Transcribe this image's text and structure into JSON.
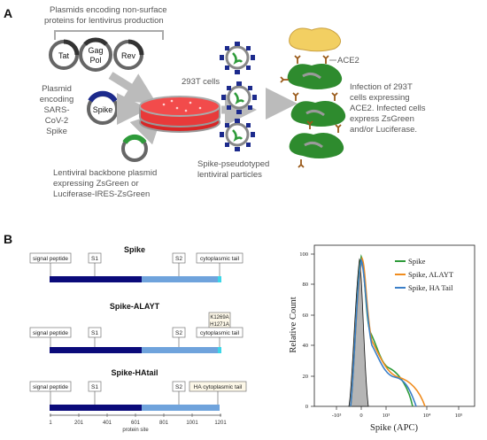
{
  "panelA": {
    "label": "A",
    "plasmid_header_line1": "Plasmids encoding non-surface",
    "plasmid_header_line2": "proteins for lentivirus production",
    "plasmids": [
      "Tat",
      "Gag",
      "Pol",
      "Rev"
    ],
    "spike_plasmid_label": [
      "Plasmid",
      "encoding",
      "SARS-",
      "CoV-2",
      "Spike"
    ],
    "spike_plasmid_name": "Spike",
    "cells_label": "293T cells",
    "backbone_label": [
      "Lentiviral backbone plasmid",
      "expressing ZsGreen or",
      "Luciferase-IRES-ZsGreen"
    ],
    "particles_label": [
      "Spike-pseudotyped",
      "lentiviral particles"
    ],
    "ace2_label": "ACE2",
    "infection_label": [
      "Infection of 293T",
      "cells expressing",
      "ACE2. Infected cells",
      "express ZsGreen",
      "and/or Luciferase."
    ]
  },
  "panelB": {
    "label": "B",
    "constructs": [
      {
        "title": "Spike",
        "domains": [
          "signal peptide",
          "S1",
          "S2",
          "cytoplasmic tail"
        ]
      },
      {
        "title": "Spike-ALAYT",
        "mutations": [
          "K1269A",
          "H1271A"
        ],
        "domains": [
          "signal peptide",
          "S1",
          "S2",
          "cytoplasmic tail"
        ]
      },
      {
        "title": "Spike-HAtail",
        "domains": [
          "signal peptide",
          "S1",
          "S2",
          "HA cytoplasmic tail"
        ]
      }
    ],
    "axis_ticks": [
      "1",
      "201",
      "401",
      "601",
      "801",
      "1001",
      "1201"
    ],
    "axis_title": "protein site"
  },
  "chart_data": {
    "type": "line",
    "xlabel": "Spike (APC)",
    "ylabel": "Relative Count",
    "yticks": [
      "0",
      "20",
      "40",
      "60",
      "80",
      "100"
    ],
    "ylim": [
      0,
      100
    ],
    "xticks": [
      "-10³",
      "0",
      "10³",
      "10⁴",
      "10⁵"
    ],
    "legend_position": "top-right",
    "legend": [
      {
        "name": "Spike",
        "color": "#2e9b3a"
      },
      {
        "name": "Spike, ALAYT",
        "color": "#f08c1e"
      },
      {
        "name": "Spike, HA Tail",
        "color": "#3b7fc8"
      }
    ],
    "grid": false
  }
}
